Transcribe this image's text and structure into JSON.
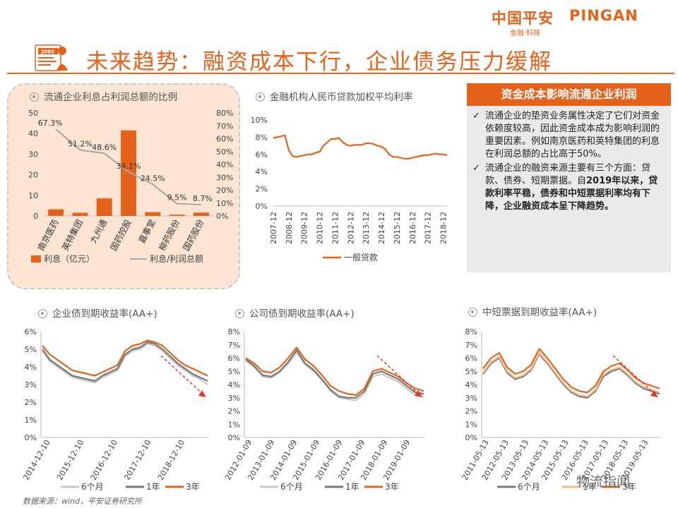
{
  "brand": {
    "cn": "中国平安",
    "en": "PINGAN",
    "sub": "金融·科技"
  },
  "title_icon_text": "JOBS",
  "page_title": "未来趋势：融资成本下行，企业债务压力缓解",
  "colors": {
    "orange": "#e5621b",
    "gray": "#a6a6a6",
    "dark_gray": "#777777",
    "peach": "#f6b98a",
    "light": "#c8c8c8"
  },
  "sidebox": {
    "title": "资金成本影响流通企业利润",
    "check": "✓",
    "p1": "流通企业的垫资业务属性决定了它们对资金依赖度较高，因此资金成本成为影响利润的重要因素。例如南京医药和英特集团的利息在利润总额的占比高于50%。",
    "p2_a": "流通企业的融资来源主要有三个方面：贷款、债券、短期票据。自",
    "p2_b": "2019年以来，贷款利率平稳，债券和中短票据利率均有下降，企业融资成本呈下降趋势。"
  },
  "chart_data": [
    {
      "type": "bar",
      "title": "流通企业利息占利润总额的比例",
      "categories": [
        "南京医药",
        "英特集团",
        "九州通",
        "国药控股",
        "嘉事堂",
        "柳药股份",
        "国药股份"
      ],
      "series": [
        {
          "name": "利息（亿元）",
          "type": "bar",
          "axis": "left",
          "values": [
            3.2,
            1.5,
            8.5,
            41.5,
            1.8,
            0.6,
            1.6
          ]
        },
        {
          "name": "利息/利润总额",
          "type": "line",
          "axis": "right",
          "values": [
            67.3,
            51.2,
            48.6,
            34.1,
            24.5,
            9.5,
            8.7
          ],
          "labels": [
            "67.3%",
            "51.2%",
            "48.6%",
            "34.1%",
            "24.5%",
            "9.5%",
            "8.7%"
          ]
        }
      ],
      "left_ylim": [
        0,
        50
      ],
      "left_ticks": [
        "0",
        "10",
        "20",
        "30",
        "40",
        "50"
      ],
      "right_ylim": [
        0,
        80
      ],
      "right_ticks": [
        "0%",
        "10%",
        "20%",
        "30%",
        "40%",
        "50%",
        "60%",
        "70%",
        "80%"
      ],
      "legend": "bottom"
    },
    {
      "type": "line",
      "title": "金融机构人民币贷款加权平均利率",
      "x": [
        "2007-12",
        "2008-03",
        "2008-06",
        "2008-09",
        "2008-12",
        "2009-03",
        "2009-06",
        "2009-09",
        "2009-12",
        "2010-03",
        "2010-06",
        "2010-09",
        "2010-12",
        "2011-03",
        "2011-06",
        "2011-09",
        "2011-12",
        "2012-03",
        "2012-06",
        "2012-09",
        "2012-12",
        "2013-03",
        "2013-06",
        "2013-09",
        "2013-12",
        "2014-03",
        "2014-06",
        "2014-09",
        "2014-12",
        "2015-03",
        "2015-06",
        "2015-09",
        "2015-12",
        "2016-03",
        "2016-06",
        "2016-09",
        "2016-12",
        "2017-03",
        "2017-06",
        "2017-09",
        "2017-12",
        "2018-03",
        "2018-06",
        "2018-09",
        "2018-12",
        "2019-03"
      ],
      "x_ticks": [
        "2007-12",
        "2008-12",
        "2009-12",
        "2010-12",
        "2011-12",
        "2012-12",
        "2013-12",
        "2014-12",
        "2015-12",
        "2016-12",
        "2017-12",
        "2018-12"
      ],
      "series": [
        {
          "name": "一般贷款",
          "values": [
            7.9,
            8.0,
            8.1,
            8.2,
            6.5,
            5.8,
            5.7,
            5.8,
            5.9,
            6.0,
            6.0,
            6.2,
            6.3,
            7.0,
            7.4,
            7.8,
            7.8,
            7.9,
            7.4,
            7.1,
            7.0,
            7.1,
            7.1,
            7.1,
            7.3,
            7.3,
            7.2,
            7.0,
            6.9,
            6.6,
            6.0,
            5.7,
            5.7,
            5.6,
            5.5,
            5.5,
            5.6,
            5.7,
            5.8,
            5.9,
            5.9,
            6.0,
            6.1,
            6.0,
            6.0,
            5.9
          ]
        }
      ],
      "ylim": [
        0,
        10
      ],
      "y_ticks": [
        "0%",
        "2%",
        "4%",
        "6%",
        "8%",
        "10%"
      ],
      "legend": "bottom"
    },
    {
      "type": "line",
      "title": "企业债到期收益率(AA+)",
      "x_ticks": [
        "2014-12-10",
        "2015-12-10",
        "2016-12-10",
        "2017-12-10",
        "2018-12-10"
      ],
      "series": [
        {
          "name": "6个月",
          "values": [
            4.9,
            4.3,
            4.0,
            3.7,
            3.4,
            3.3,
            3.2,
            3.1,
            3.4,
            3.6,
            3.8,
            4.6,
            4.9,
            5.0,
            5.3,
            5.2,
            4.9,
            4.5,
            4.1,
            3.8,
            3.5,
            3.3,
            3.0
          ]
        },
        {
          "name": "1年",
          "values": [
            5.0,
            4.4,
            4.1,
            3.8,
            3.5,
            3.4,
            3.3,
            3.2,
            3.5,
            3.7,
            3.9,
            4.7,
            5.0,
            5.1,
            5.4,
            5.3,
            5.0,
            4.6,
            4.2,
            3.9,
            3.6,
            3.4,
            3.2
          ]
        },
        {
          "name": "3年",
          "values": [
            5.2,
            4.7,
            4.4,
            4.1,
            3.8,
            3.7,
            3.6,
            3.5,
            3.7,
            3.9,
            4.1,
            4.9,
            5.2,
            5.3,
            5.5,
            5.4,
            5.2,
            4.8,
            4.4,
            4.1,
            3.9,
            3.7,
            3.5
          ]
        }
      ],
      "ylim": [
        0,
        6
      ],
      "y_ticks": [
        "0%",
        "1%",
        "2%",
        "3%",
        "4%",
        "5%",
        "6%"
      ],
      "legend": "bottom"
    },
    {
      "type": "line",
      "title": "公司债到期收益率(AA+)",
      "x_ticks": [
        "2012-01-09",
        "2013-01-09",
        "2014-01-09",
        "2015-01-09",
        "2016-01-09",
        "2017-01-09",
        "2018-01-09",
        "2019-01-09"
      ],
      "series": [
        {
          "name": "6个月",
          "values": [
            5.8,
            5.3,
            4.6,
            4.5,
            4.9,
            5.6,
            6.4,
            5.5,
            5.0,
            4.3,
            3.5,
            3.0,
            2.9,
            2.8,
            3.3,
            4.6,
            4.8,
            4.5,
            4.2,
            3.7,
            3.2,
            3.1
          ]
        },
        {
          "name": "1年",
          "values": [
            5.9,
            5.4,
            4.7,
            4.6,
            5.0,
            5.7,
            6.6,
            5.6,
            5.1,
            4.4,
            3.6,
            3.1,
            3.0,
            3.0,
            3.5,
            4.8,
            5.0,
            4.7,
            4.4,
            3.9,
            3.4,
            3.3
          ]
        },
        {
          "name": "3年",
          "values": [
            6.0,
            5.6,
            5.0,
            4.9,
            5.3,
            6.0,
            6.8,
            5.9,
            5.4,
            4.7,
            3.9,
            3.5,
            3.3,
            3.2,
            3.7,
            5.0,
            5.2,
            4.9,
            4.6,
            4.1,
            3.7,
            3.5
          ]
        }
      ],
      "ylim": [
        0,
        8
      ],
      "y_ticks": [
        "0%",
        "1%",
        "2%",
        "3%",
        "4%",
        "5%",
        "6%",
        "7%",
        "8%"
      ],
      "legend": "bottom"
    },
    {
      "type": "line",
      "title": "中短票据到期收益率(AA+)",
      "x_ticks": [
        "2011-05-13",
        "2012-05-13",
        "2013-05-13",
        "2014-05-13",
        "2015-05-13",
        "2016-05-13",
        "2017-05-13",
        "2018-05-13",
        "2019-05-13"
      ],
      "series": [
        {
          "name": "6个月",
          "values": [
            4.8,
            5.6,
            6.0,
            4.9,
            4.4,
            4.6,
            5.1,
            6.3,
            5.6,
            4.8,
            4.0,
            3.4,
            3.1,
            3.0,
            3.5,
            4.6,
            5.0,
            5.2,
            4.7,
            4.1,
            3.7,
            3.5,
            3.3
          ]
        },
        {
          "name": "1年",
          "values": [
            4.9,
            5.7,
            6.1,
            5.0,
            4.5,
            4.7,
            5.2,
            6.4,
            5.7,
            4.9,
            4.1,
            3.5,
            3.2,
            3.1,
            3.6,
            4.8,
            5.1,
            5.3,
            4.8,
            4.2,
            3.8,
            3.6,
            3.4
          ]
        },
        {
          "name": "3年",
          "values": [
            5.2,
            6.0,
            6.4,
            5.3,
            4.8,
            5.0,
            5.5,
            6.7,
            6.0,
            5.2,
            4.4,
            3.8,
            3.5,
            3.4,
            3.9,
            5.0,
            5.4,
            5.6,
            5.1,
            4.5,
            4.1,
            3.9,
            3.7
          ]
        }
      ],
      "ylim": [
        0,
        8
      ],
      "y_ticks": [
        "0%",
        "1%",
        "2%",
        "3%",
        "4%",
        "5%",
        "6%",
        "7%",
        "8%"
      ],
      "legend": "bottom"
    }
  ],
  "footer": "数据来源：wind，平安证券研究所",
  "watermark": "物流指闻"
}
